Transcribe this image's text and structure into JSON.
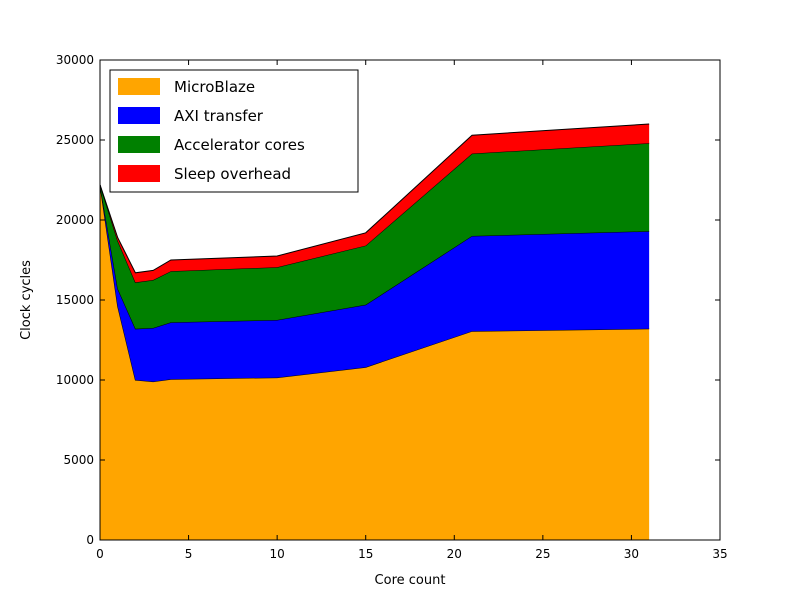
{
  "chart_data": {
    "type": "area",
    "stacked": true,
    "title": "",
    "xlabel": "Core count",
    "ylabel": "Clock cycles",
    "xlim": [
      0,
      35
    ],
    "ylim": [
      0,
      30000
    ],
    "xticks": [
      0,
      5,
      10,
      15,
      20,
      25,
      30,
      35
    ],
    "yticks": [
      0,
      5000,
      10000,
      15000,
      20000,
      25000,
      30000
    ],
    "grid": false,
    "legend_position": "top-left",
    "x": [
      0,
      1,
      2,
      3,
      4,
      10,
      15,
      21,
      31
    ],
    "series": [
      {
        "name": "MicroBlaze",
        "color": "#ffa500",
        "values": [
          22200,
          14600,
          10000,
          9900,
          10050,
          10150,
          10800,
          13050,
          13200
        ]
      },
      {
        "name": "AXI transfer",
        "color": "#0000ff",
        "values": [
          0,
          1100,
          3200,
          3350,
          3550,
          3600,
          3900,
          5950,
          6100
        ]
      },
      {
        "name": "Accelerator cores",
        "color": "#008000",
        "values": [
          0,
          3000,
          2900,
          3000,
          3200,
          3300,
          3700,
          5150,
          5500
        ]
      },
      {
        "name": "Sleep overhead",
        "color": "#ff0000",
        "values": [
          0,
          200,
          600,
          600,
          700,
          700,
          800,
          1150,
          1200
        ]
      }
    ]
  }
}
